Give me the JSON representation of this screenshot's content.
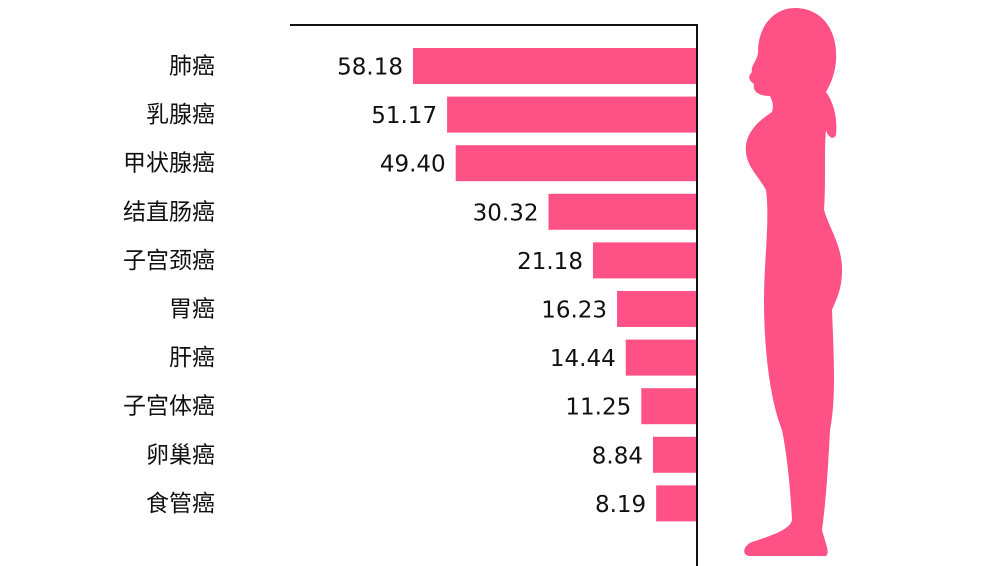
{
  "chart_data": {
    "type": "bar",
    "orientation": "horizontal",
    "direction": "right-to-left",
    "categories": [
      "肺癌",
      "乳腺癌",
      "甲状腺癌",
      "结直肠癌",
      "子宫颈癌",
      "胃癌",
      "肝癌",
      "子宫体癌",
      "卵巢癌",
      "食管癌"
    ],
    "values": [
      58.18,
      51.17,
      49.4,
      30.32,
      21.18,
      16.23,
      14.44,
      11.25,
      8.84,
      8.19
    ],
    "value_labels": [
      "58.18",
      "51.17",
      "49.40",
      "30.32",
      "21.18",
      "16.23",
      "14.44",
      "11.25",
      "8.84",
      "8.19"
    ],
    "title": "",
    "xlabel": "",
    "ylabel": "",
    "xlim": [
      0,
      60
    ],
    "grid": false,
    "bar_color": "#fe5185",
    "silhouette_color": "#fe5185",
    "decoration": "woman-silhouette-icon"
  }
}
